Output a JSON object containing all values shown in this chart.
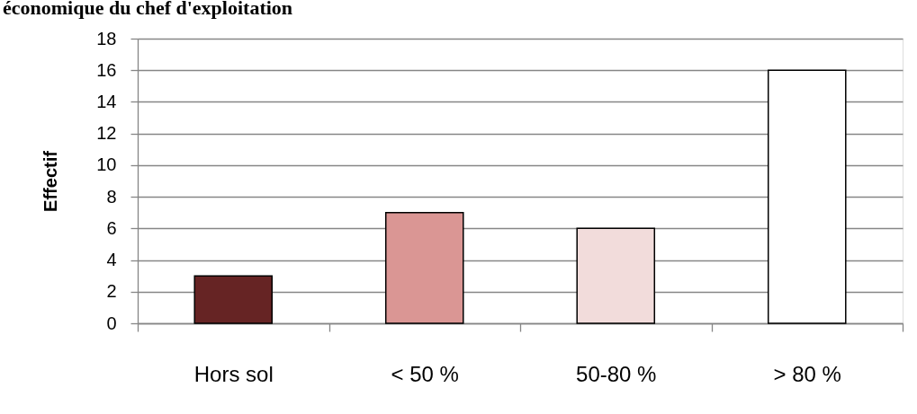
{
  "chart_data": {
    "type": "bar",
    "title": "économique du chef d'exploitation",
    "ylabel": "Effectif",
    "categories": [
      "Hors sol",
      "< 50 %",
      "50-80 %",
      "> 80 %"
    ],
    "values": [
      3,
      7,
      6,
      16
    ],
    "colors": [
      "#662424",
      "#da9694",
      "#f2dcdb",
      "#ffffff"
    ],
    "ylim": [
      0,
      18
    ],
    "yticks": [
      0,
      2,
      4,
      6,
      8,
      10,
      12,
      14,
      16,
      18
    ],
    "grid": "y"
  }
}
